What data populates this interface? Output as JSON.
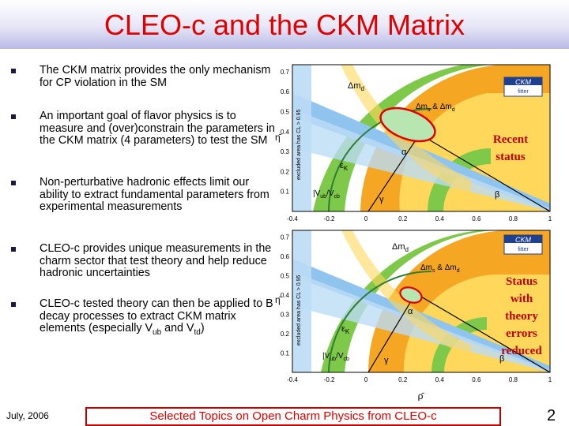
{
  "slide": {
    "title": "CLEO-c and the CKM Matrix",
    "bullets": [
      {
        "parts": [
          {
            "t": "The CKM matrix provides the only mechanism for CP violation in the SM"
          }
        ]
      },
      {
        "parts": [
          {
            "t": "An important goal of flavor physics is to measure and (over)constrain the parameters in the CKM matrix (4 parameters) to test the SM"
          }
        ]
      },
      {
        "parts": [
          {
            "t": "Non-perturbative hadronic effects limit our ability to extract fundamental parameters from experimental measurements"
          }
        ]
      },
      {
        "parts": [
          {
            "t": "CLEO-c provides unique measurements in the charm sector that test theory and help reduce hadronic uncertainties"
          }
        ]
      },
      {
        "parts": [
          {
            "t": "CLEO-c tested theory can then be applied to B decay processes to extract CKM matrix elements  (especially V"
          },
          {
            "sub": "ub"
          },
          {
            "t": " and V"
          },
          {
            "sub": "td"
          },
          {
            "t": ")"
          }
        ]
      }
    ],
    "footer": {
      "date": "July, 2006",
      "center": "Selected Topics on Open Charm Physics from CLEO-c",
      "page": "2"
    }
  },
  "colors": {
    "title": "#e00000",
    "footer_border": "#c00000",
    "side_label": "#c00000",
    "green": "#7fc94a",
    "orange": "#f5a623",
    "yellow": "#ffd75a",
    "blue": "#8fc4ee",
    "light_blue": "#bcdcf5"
  },
  "plots": [
    {
      "side_label": [
        "Recent",
        "status"
      ],
      "labels": {
        "dm": "Δm",
        "dm_sub": "d",
        "dms": "Δm",
        "dms_sub": "s",
        "dms_and": " & Δm",
        "dms_sub2": "d",
        "eps": "ε",
        "eps_sub": "K",
        "vub": "|V",
        "vub_sub": "ub",
        "vub_mid": "/V",
        "vub_sub2": "cb",
        "alpha": "α",
        "beta": "β",
        "gamma": "γ",
        "ckm_logo": "CKM",
        "ckm_sub": "fitter",
        "excluded": "excluded area has CL > 0.95"
      },
      "axis": {
        "x_ticks": [
          "-0.4",
          "-0.2",
          "0",
          "0.2",
          "0.4",
          "0.6",
          "0.8",
          "1"
        ],
        "y_ticks": [
          "0.1",
          "0.2",
          "0.3",
          "0.4",
          "0.5",
          "0.6",
          "0.7"
        ],
        "ylabel": "η̄"
      }
    },
    {
      "side_label": [
        "Status",
        "with",
        "theory",
        "errors",
        "reduced"
      ],
      "labels": {
        "dm": "Δm",
        "dm_sub": "d",
        "dms": "Δm",
        "dms_sub": "s",
        "dms_and": " & Δm",
        "dms_sub2": "d",
        "eps": "ε",
        "eps_sub": "K",
        "vub": "|V",
        "vub_sub": "ub",
        "vub_mid": "/V",
        "vub_sub2": "cb",
        "alpha": "α",
        "beta": "β",
        "gamma": "γ",
        "ckm_logo": "CKM",
        "ckm_sub": "fitter",
        "excluded": "excluded area has CL > 0.95"
      },
      "axis": {
        "x_ticks": [
          "-0.4",
          "-0.2",
          "0",
          "0.2",
          "0.4",
          "0.6",
          "0.8",
          "1"
        ],
        "y_ticks": [
          "0.1",
          "0.2",
          "0.3",
          "0.4",
          "0.5",
          "0.6",
          "0.7"
        ],
        "ylabel": "η̄",
        "xlabel": "ρ̄"
      }
    }
  ]
}
